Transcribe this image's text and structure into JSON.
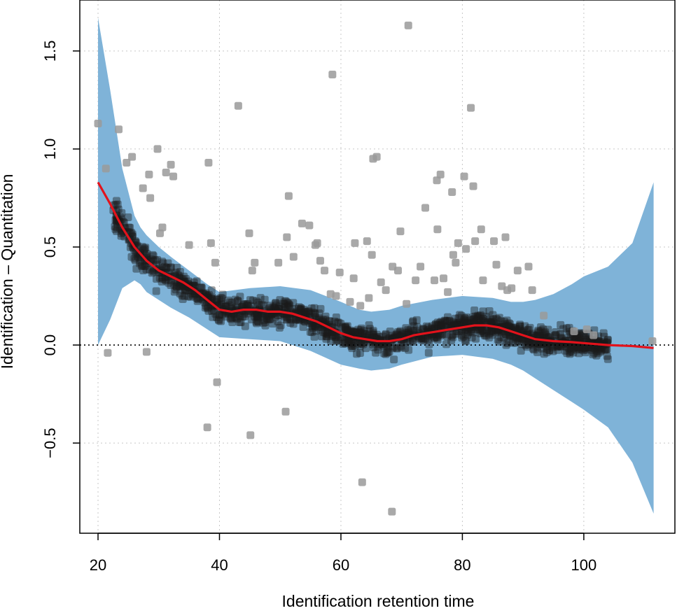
{
  "chart_data": {
    "type": "scatter",
    "title": "",
    "xlabel": "Identification retention time",
    "ylabel": "Identification – Quantitation",
    "xlim": [
      17,
      115
    ],
    "ylim": [
      -0.96,
      1.76
    ],
    "x_ticks": [
      20,
      40,
      60,
      80,
      100
    ],
    "x_tick_labels": [
      "20",
      "40",
      "60",
      "80",
      "100"
    ],
    "y_ticks": [
      -0.5,
      0.0,
      0.5,
      1.0,
      1.5
    ],
    "y_tick_labels": [
      "−0.5",
      "0.0",
      "0.5",
      "1.0",
      "1.5"
    ],
    "grid": true,
    "reference_line_y": 0,
    "colors": {
      "band": "#7fb3d8",
      "trend": "#e3121b",
      "outlier_points": "#9a9a9a",
      "dense_points": "#1a1a1a",
      "grid": "#c8c8c8"
    },
    "confidence_band": {
      "x": [
        20,
        22,
        24,
        26,
        27,
        28,
        30,
        32,
        35,
        38,
        40,
        45,
        50,
        55,
        60,
        63,
        65,
        68,
        70,
        75,
        80,
        85,
        88,
        90,
        92,
        95,
        98,
        100,
        104,
        108,
        111.5
      ],
      "upper": [
        1.67,
        1.3,
        0.9,
        0.66,
        0.6,
        0.56,
        0.5,
        0.45,
        0.38,
        0.31,
        0.27,
        0.29,
        0.3,
        0.28,
        0.22,
        0.18,
        0.17,
        0.18,
        0.2,
        0.23,
        0.25,
        0.24,
        0.22,
        0.22,
        0.23,
        0.26,
        0.31,
        0.35,
        0.4,
        0.52,
        0.83
      ],
      "lower": [
        0.0,
        0.13,
        0.29,
        0.33,
        0.31,
        0.27,
        0.23,
        0.19,
        0.14,
        0.08,
        0.04,
        0.03,
        0.02,
        -0.03,
        -0.1,
        -0.12,
        -0.13,
        -0.12,
        -0.1,
        -0.06,
        -0.05,
        -0.07,
        -0.1,
        -0.13,
        -0.17,
        -0.23,
        -0.29,
        -0.33,
        -0.42,
        -0.6,
        -0.86
      ]
    },
    "trend_line": {
      "x": [
        20,
        22,
        24,
        26,
        28,
        30,
        32,
        34,
        36,
        38,
        40,
        42,
        44,
        46,
        48,
        50,
        52,
        54,
        56,
        58,
        60,
        62,
        64,
        66,
        68,
        70,
        72,
        74,
        76,
        78,
        80,
        82,
        84,
        86,
        88,
        90,
        92,
        95,
        98,
        100,
        104,
        108,
        111.5
      ],
      "y": [
        0.83,
        0.72,
        0.6,
        0.5,
        0.43,
        0.38,
        0.35,
        0.32,
        0.28,
        0.23,
        0.18,
        0.17,
        0.18,
        0.18,
        0.17,
        0.17,
        0.16,
        0.14,
        0.12,
        0.09,
        0.06,
        0.04,
        0.03,
        0.02,
        0.02,
        0.03,
        0.05,
        0.06,
        0.07,
        0.08,
        0.09,
        0.1,
        0.1,
        0.09,
        0.07,
        0.05,
        0.03,
        0.02,
        0.015,
        0.01,
        0.0,
        -0.005,
        -0.015
      ]
    },
    "outlier_points": [
      [
        20,
        1.13
      ],
      [
        21.3,
        0.9
      ],
      [
        21.6,
        -0.04
      ],
      [
        23.4,
        1.1
      ],
      [
        24.7,
        0.93
      ],
      [
        25.6,
        0.96
      ],
      [
        27.4,
        0.8
      ],
      [
        28,
        -0.035
      ],
      [
        28.4,
        0.87
      ],
      [
        28.6,
        0.75
      ],
      [
        29.8,
        1.0
      ],
      [
        30.2,
        0.57
      ],
      [
        30.6,
        0.6
      ],
      [
        31.2,
        0.88
      ],
      [
        32,
        0.92
      ],
      [
        32.4,
        0.86
      ],
      [
        35,
        0.51
      ],
      [
        38,
        -0.42
      ],
      [
        38.2,
        0.93
      ],
      [
        38.6,
        0.52
      ],
      [
        39.3,
        0.42
      ],
      [
        39.6,
        -0.19
      ],
      [
        43.1,
        1.22
      ],
      [
        44.9,
        0.57
      ],
      [
        45.1,
        -0.46
      ],
      [
        45.4,
        0.38
      ],
      [
        45.8,
        0.42
      ],
      [
        49.7,
        0.42
      ],
      [
        50.9,
        -0.34
      ],
      [
        51.1,
        0.55
      ],
      [
        51.4,
        0.76
      ],
      [
        52.2,
        0.45
      ],
      [
        53.6,
        0.62
      ],
      [
        54.8,
        0.61
      ],
      [
        55.8,
        0.51
      ],
      [
        56.1,
        0.52
      ],
      [
        56.6,
        0.43
      ],
      [
        57.3,
        0.38
      ],
      [
        58.3,
        0.26
      ],
      [
        58.6,
        1.38
      ],
      [
        59.2,
        0.25
      ],
      [
        59.8,
        0.37
      ],
      [
        61.5,
        0.22
      ],
      [
        62.1,
        0.34
      ],
      [
        62.3,
        0.52
      ],
      [
        63.2,
        0.2
      ],
      [
        63.5,
        -0.7
      ],
      [
        64.3,
        0.53
      ],
      [
        64.6,
        0.24
      ],
      [
        65.1,
        0.46
      ],
      [
        65.3,
        0.95
      ],
      [
        65.9,
        0.96
      ],
      [
        66.6,
        0.32
      ],
      [
        67.4,
        0.28
      ],
      [
        68.4,
        -0.85
      ],
      [
        68.5,
        0.4
      ],
      [
        69.4,
        0.38
      ],
      [
        69.8,
        0.58
      ],
      [
        70.8,
        0.21
      ],
      [
        71.1,
        1.63
      ],
      [
        72.3,
        0.33
      ],
      [
        73.1,
        0.4
      ],
      [
        73.9,
        0.7
      ],
      [
        75.4,
        0.33
      ],
      [
        75.8,
        0.84
      ],
      [
        75.9,
        0.59
      ],
      [
        76.4,
        0.87
      ],
      [
        76.9,
        0.34
      ],
      [
        77.6,
        0.27
      ],
      [
        78.3,
        0.78
      ],
      [
        78.5,
        0.46
      ],
      [
        78.9,
        0.42
      ],
      [
        79.3,
        0.52
      ],
      [
        80.3,
        0.86
      ],
      [
        80.6,
        0.49
      ],
      [
        81.4,
        1.21
      ],
      [
        81.8,
        0.81
      ],
      [
        82.1,
        0.53
      ],
      [
        83.1,
        0.59
      ],
      [
        83.4,
        0.33
      ],
      [
        85.2,
        0.53
      ],
      [
        85.6,
        0.41
      ],
      [
        86.5,
        0.3
      ],
      [
        87.1,
        0.55
      ],
      [
        87.4,
        0.28
      ],
      [
        88.1,
        0.29
      ],
      [
        89.1,
        0.38
      ],
      [
        90.9,
        0.4
      ],
      [
        91.5,
        0.28
      ],
      [
        93.4,
        0.15
      ],
      [
        98.4,
        0.07
      ],
      [
        100.5,
        0.08
      ],
      [
        101.6,
        0.05
      ],
      [
        111.3,
        0.02
      ]
    ],
    "dense_cloud": {
      "x_range": [
        22.5,
        104
      ],
      "point_count": 1400,
      "spread_sd": 0.045
    }
  }
}
